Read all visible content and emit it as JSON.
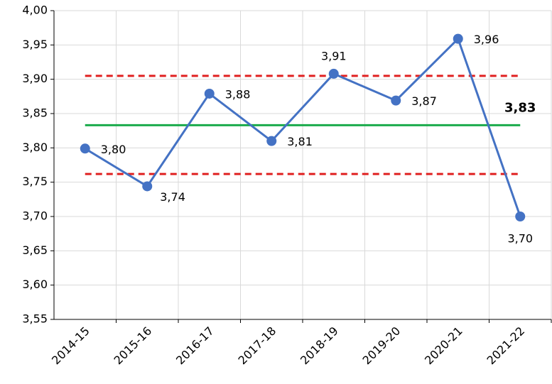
{
  "chart_data": {
    "type": "line",
    "categories": [
      "2014-15",
      "2015-16",
      "2016-17",
      "2017-18",
      "2018-19",
      "2019-20",
      "2020-21",
      "2021-22"
    ],
    "series": [
      {
        "color": "#4472c4",
        "values": [
          3.799,
          3.744,
          3.879,
          3.81,
          3.908,
          3.869,
          3.959,
          3.7
        ],
        "value_labels": [
          "3,80",
          "3,74",
          "3,88",
          "3,81",
          "3,91",
          "3,87",
          "3,96",
          "3,70"
        ]
      }
    ],
    "mean": {
      "value": 3.833,
      "label": "3,83",
      "color": "#1aab4b"
    },
    "limits": [
      {
        "value": 3.905,
        "color": "#e02020"
      },
      {
        "value": 3.762,
        "color": "#e02020"
      }
    ],
    "ylim": [
      3.55,
      4.0
    ],
    "yticks": [
      {
        "value": 3.55,
        "label": "3,55"
      },
      {
        "value": 3.6,
        "label": "3,60"
      },
      {
        "value": 3.65,
        "label": "3,65"
      },
      {
        "value": 3.7,
        "label": "3,70"
      },
      {
        "value": 3.75,
        "label": "3,75"
      },
      {
        "value": 3.8,
        "label": "3,80"
      },
      {
        "value": 3.85,
        "label": "3,85"
      },
      {
        "value": 3.9,
        "label": "3,90"
      },
      {
        "value": 3.95,
        "label": "3,95"
      },
      {
        "value": 4.0,
        "label": "4,00"
      }
    ],
    "grid": true
  }
}
